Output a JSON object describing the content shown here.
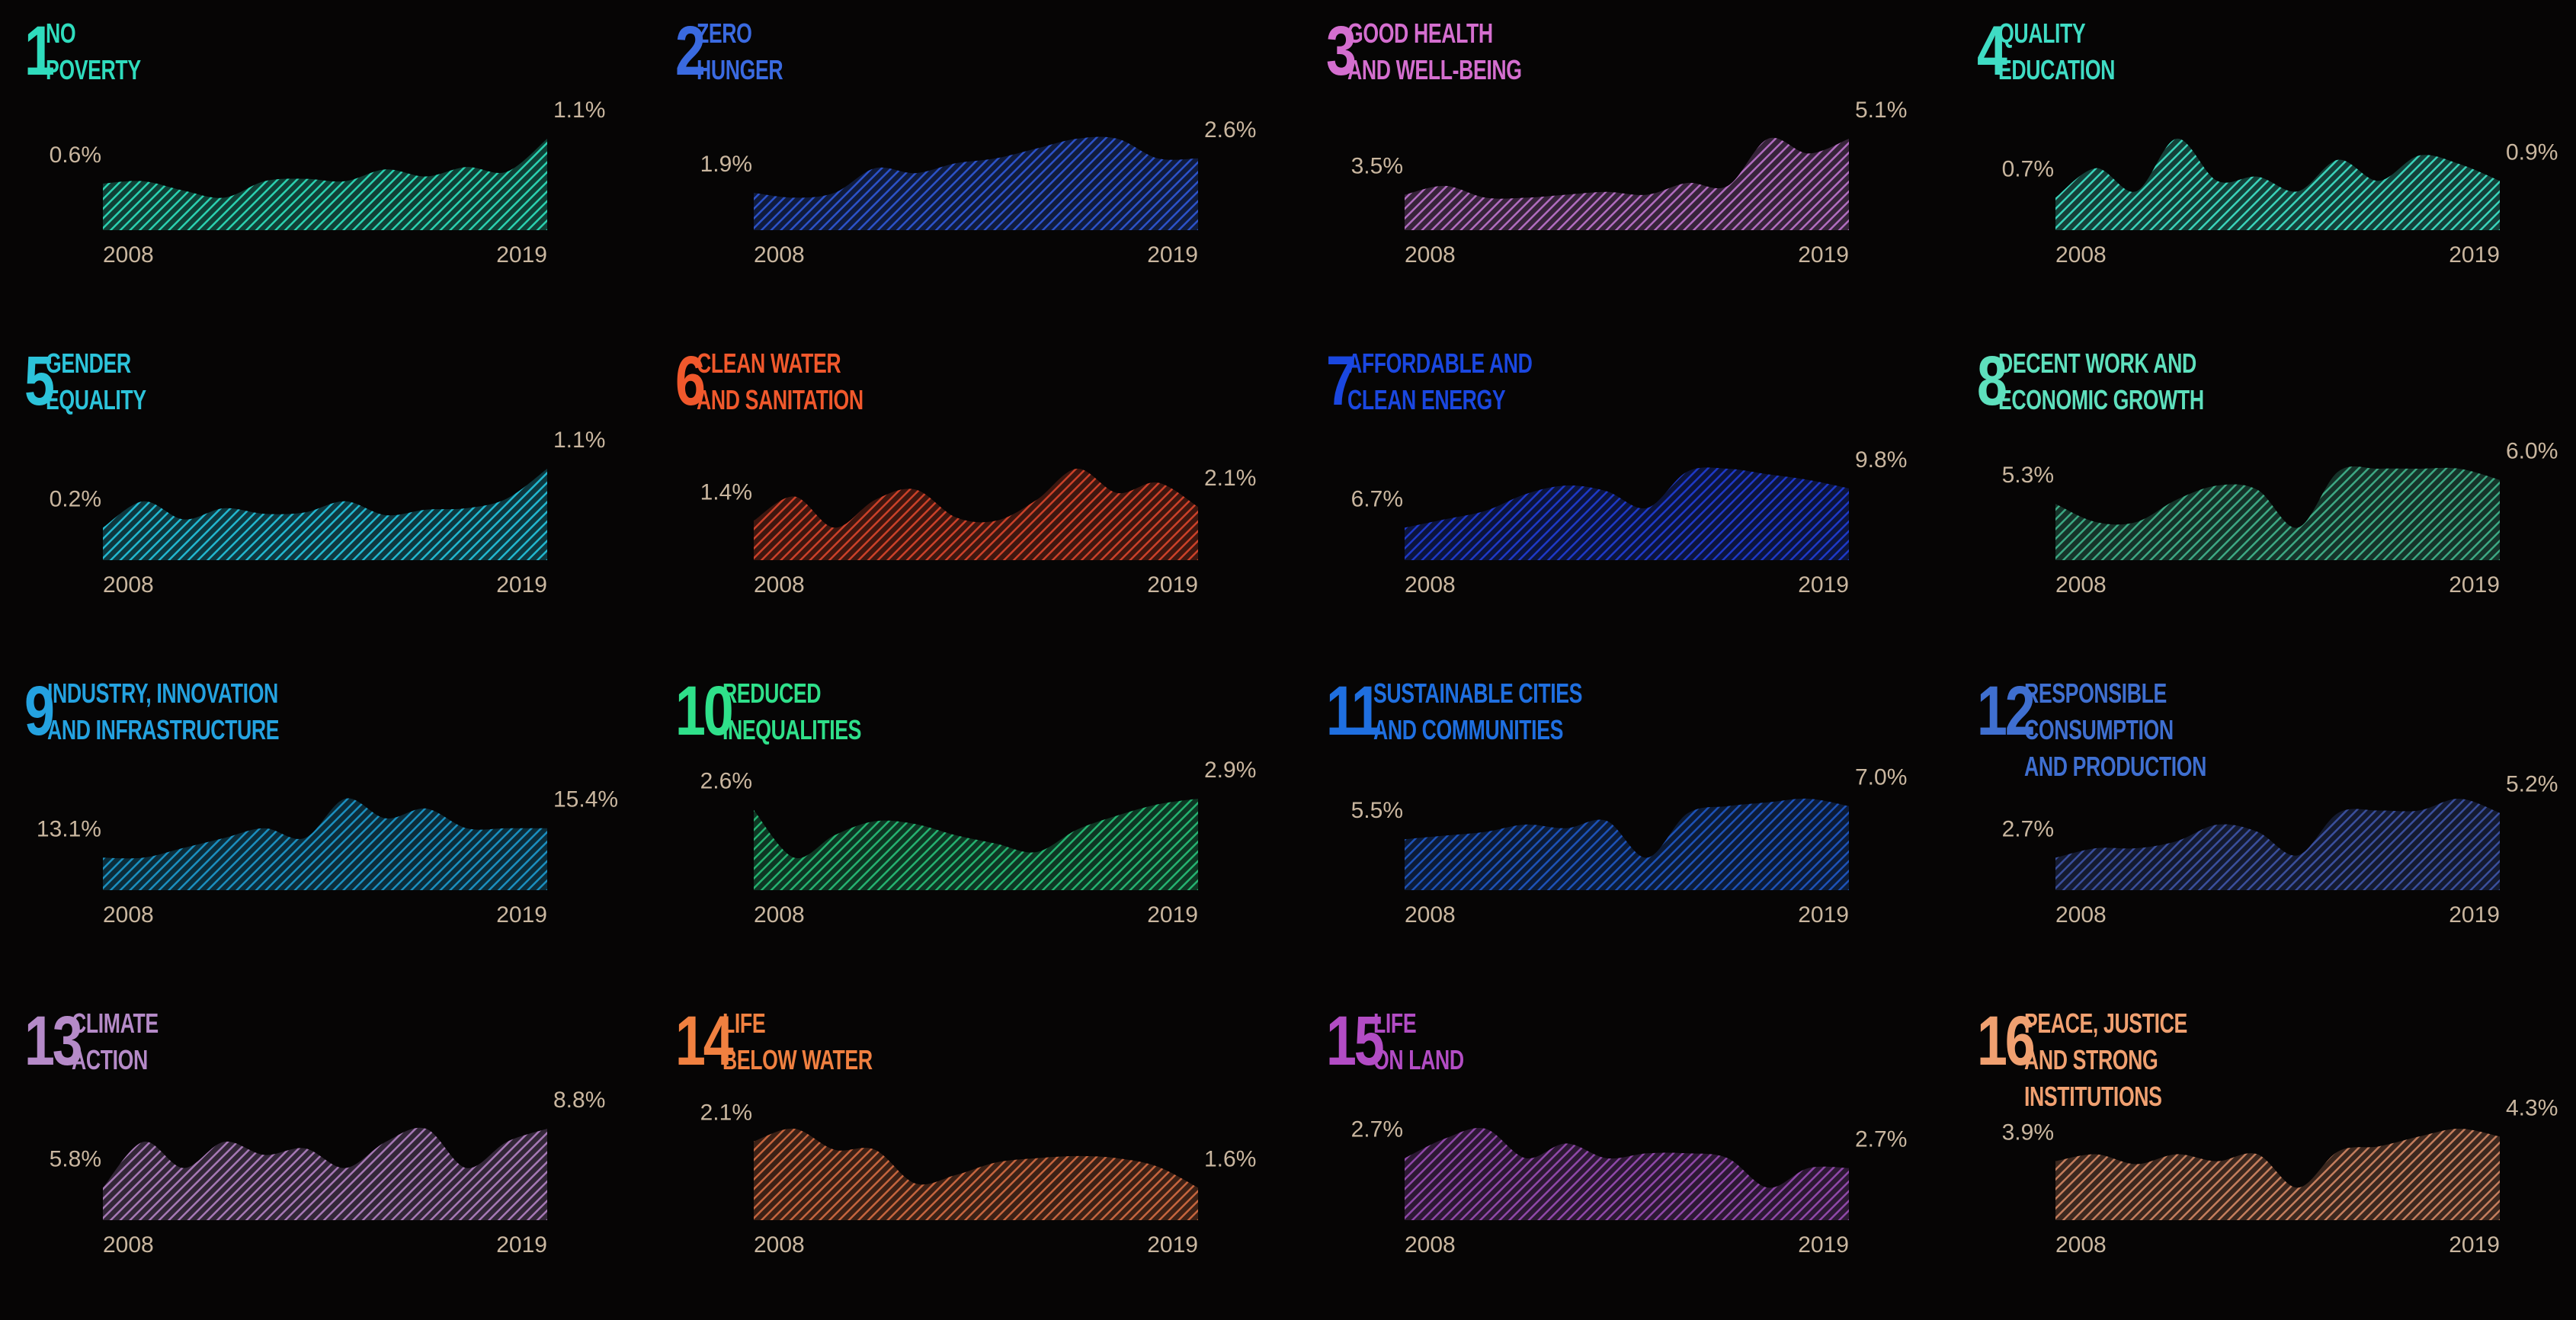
{
  "chart_data": [
    {
      "type": "area",
      "goal_number": "1",
      "name_lines": [
        "NO",
        "POVERTY"
      ],
      "color": "#2bd1b0",
      "x": [
        2008,
        2009,
        2010,
        2011,
        2012,
        2013,
        2014,
        2015,
        2016,
        2017,
        2018,
        2019
      ],
      "values": [
        0.72,
        0.74,
        0.66,
        0.6,
        0.74,
        0.76,
        0.74,
        0.84,
        0.78,
        0.86,
        0.82,
        1.1
      ],
      "start_label": "0.6%",
      "end_label": "1.1%",
      "x_start_label": "2008",
      "x_end_label": "2019"
    },
    {
      "type": "area",
      "goal_number": "2",
      "name_lines": [
        "ZERO",
        "HUNGER"
      ],
      "color": "#2c52c8",
      "x": [
        2008,
        2009,
        2010,
        2011,
        2012,
        2013,
        2014,
        2015,
        2016,
        2017,
        2018,
        2019
      ],
      "values": [
        1.95,
        1.9,
        1.95,
        2.2,
        2.15,
        2.25,
        2.3,
        2.4,
        2.5,
        2.5,
        2.3,
        2.3
      ],
      "start_label": "1.9%",
      "end_label": "2.6%",
      "x_start_label": "2008",
      "x_end_label": "2019"
    },
    {
      "type": "area",
      "goal_number": "3",
      "name_lines": [
        "GOOD HEALTH",
        "AND WELL-BEING"
      ],
      "color": "#b16dbf",
      "x": [
        2008,
        2009,
        2010,
        2011,
        2012,
        2013,
        2014,
        2015,
        2016,
        2017,
        2018,
        2019
      ],
      "values": [
        4.0,
        4.15,
        3.95,
        3.95,
        4.0,
        4.05,
        4.0,
        4.2,
        4.15,
        4.95,
        4.7,
        4.95
      ],
      "start_label": "3.5%",
      "end_label": "5.1%",
      "x_start_label": "2008",
      "x_end_label": "2019"
    },
    {
      "type": "area",
      "goal_number": "4",
      "name_lines": [
        "QUALITY",
        "EDUCATION"
      ],
      "color": "#3ad3ba",
      "x": [
        2008,
        2009,
        2010,
        2011,
        2012,
        2013,
        2014,
        2015,
        2016,
        2017,
        2018,
        2019
      ],
      "values": [
        0.62,
        0.76,
        0.65,
        0.9,
        0.7,
        0.72,
        0.65,
        0.8,
        0.7,
        0.82,
        0.78,
        0.7
      ],
      "start_label": "0.7%",
      "end_label": "0.9%",
      "x_start_label": "2008",
      "x_end_label": "2019"
    },
    {
      "type": "area",
      "goal_number": "5",
      "name_lines": [
        "GENDER",
        "EQUALITY"
      ],
      "color": "#22b7cf",
      "x": [
        2008,
        2009,
        2010,
        2011,
        2012,
        2013,
        2014,
        2015,
        2016,
        2017,
        2018,
        2019
      ],
      "values": [
        0.2,
        0.58,
        0.32,
        0.48,
        0.4,
        0.42,
        0.58,
        0.38,
        0.46,
        0.48,
        0.62,
        1.05
      ],
      "start_label": "0.2%",
      "end_label": "1.1%",
      "x_start_label": "2008",
      "x_end_label": "2019"
    },
    {
      "type": "area",
      "goal_number": "6",
      "name_lines": [
        "CLEAN WATER",
        "AND SANITATION"
      ],
      "color": "#cb4129",
      "x": [
        2008,
        2009,
        2010,
        2011,
        2012,
        2013,
        2014,
        2015,
        2016,
        2017,
        2018,
        2019
      ],
      "values": [
        1.42,
        1.56,
        1.38,
        1.54,
        1.6,
        1.44,
        1.42,
        1.54,
        1.72,
        1.58,
        1.64,
        1.5
      ],
      "start_label": "1.4%",
      "end_label": "2.1%",
      "x_start_label": "2008",
      "x_end_label": "2019"
    },
    {
      "type": "area",
      "goal_number": "7",
      "name_lines": [
        "AFFORDABLE AND",
        "CLEAN ENERGY"
      ],
      "color": "#1e39c7",
      "x": [
        2008,
        2009,
        2010,
        2011,
        2012,
        2013,
        2014,
        2015,
        2016,
        2017,
        2018,
        2019
      ],
      "values": [
        7.0,
        7.3,
        7.6,
        8.2,
        8.5,
        8.3,
        7.7,
        9.0,
        9.1,
        8.9,
        8.7,
        8.4
      ],
      "start_label": "6.7%",
      "end_label": "9.8%",
      "x_start_label": "2008",
      "x_end_label": "2019"
    },
    {
      "type": "area",
      "goal_number": "8",
      "name_lines": [
        "DECENT WORK AND",
        "ECONOMIC GROWTH"
      ],
      "color": "#3da883",
      "x": [
        2008,
        2009,
        2010,
        2011,
        2012,
        2013,
        2014,
        2015,
        2016,
        2017,
        2018,
        2019
      ],
      "values": [
        5.75,
        5.62,
        5.62,
        5.78,
        5.88,
        5.85,
        5.58,
        5.98,
        6.0,
        6.0,
        6.0,
        5.92
      ],
      "start_label": "5.3%",
      "end_label": "6.0%",
      "x_start_label": "2008",
      "x_end_label": "2019"
    },
    {
      "type": "area",
      "goal_number": "9",
      "name_lines": [
        "INDUSTRY, INNOVATION",
        "AND INFRASTRUCTURE"
      ],
      "color": "#1b8fbf",
      "x": [
        2008,
        2009,
        2010,
        2011,
        2012,
        2013,
        2014,
        2015,
        2016,
        2017,
        2018,
        2019
      ],
      "values": [
        14.1,
        14.1,
        14.2,
        14.3,
        14.4,
        14.3,
        14.7,
        14.5,
        14.6,
        14.4,
        14.4,
        14.4
      ],
      "start_label": "13.1%",
      "end_label": "15.4%",
      "x_start_label": "2008",
      "x_end_label": "2019"
    },
    {
      "type": "area",
      "goal_number": "10",
      "name_lines": [
        "REDUCED",
        "INEQUALITIES"
      ],
      "color": "#25b270",
      "x": [
        2008,
        2009,
        2010,
        2011,
        2012,
        2013,
        2014,
        2015,
        2016,
        2017,
        2018,
        2019
      ],
      "values": [
        2.83,
        2.66,
        2.74,
        2.79,
        2.78,
        2.74,
        2.71,
        2.68,
        2.76,
        2.81,
        2.85,
        2.87
      ],
      "start_label": "2.6%",
      "end_label": "2.9%",
      "x_start_label": "2008",
      "x_end_label": "2019"
    },
    {
      "type": "area",
      "goal_number": "11",
      "name_lines": [
        "SUSTAINABLE CITIES",
        "AND COMMUNITIES"
      ],
      "color": "#1d52b7",
      "x": [
        2008,
        2009,
        2010,
        2011,
        2012,
        2013,
        2014,
        2015,
        2016,
        2017,
        2018,
        2019
      ],
      "values": [
        6.05,
        6.1,
        6.15,
        6.25,
        6.2,
        6.3,
        5.8,
        6.4,
        6.5,
        6.55,
        6.6,
        6.5
      ],
      "start_label": "5.5%",
      "end_label": "7.0%",
      "x_start_label": "2008",
      "x_end_label": "2019"
    },
    {
      "type": "area",
      "goal_number": "12",
      "name_lines": [
        "RESPONSIBLE",
        "CONSUMPTION",
        "AND PRODUCTION"
      ],
      "color": "#3a4f9c",
      "x": [
        2008,
        2009,
        2010,
        2011,
        2012,
        2013,
        2014,
        2015,
        2016,
        2017,
        2018,
        2019
      ],
      "values": [
        3.2,
        3.4,
        3.4,
        3.55,
        3.9,
        3.75,
        3.25,
        4.15,
        4.2,
        4.2,
        4.45,
        4.15
      ],
      "start_label": "2.7%",
      "end_label": "5.2%",
      "x_start_label": "2008",
      "x_end_label": "2019"
    },
    {
      "type": "area",
      "goal_number": "13",
      "name_lines": [
        "CLIMATE",
        "ACTION"
      ],
      "color": "#a679b5",
      "x": [
        2008,
        2009,
        2010,
        2011,
        2012,
        2013,
        2014,
        2015,
        2016,
        2017,
        2018,
        2019
      ],
      "values": [
        6.6,
        7.3,
        6.9,
        7.3,
        7.1,
        7.2,
        6.9,
        7.3,
        7.5,
        6.9,
        7.3,
        7.5
      ],
      "start_label": "5.8%",
      "end_label": "8.8%",
      "x_start_label": "2008",
      "x_end_label": "2019"
    },
    {
      "type": "area",
      "goal_number": "14",
      "name_lines": [
        "LIFE",
        "BELOW WATER"
      ],
      "color": "#c5653e",
      "x": [
        2008,
        2009,
        2010,
        2011,
        2012,
        2013,
        2014,
        2015,
        2016,
        2017,
        2018,
        2019
      ],
      "values": [
        2.0,
        2.06,
        1.96,
        1.96,
        1.8,
        1.84,
        1.9,
        1.92,
        1.93,
        1.92,
        1.88,
        1.78
      ],
      "start_label": "2.1%",
      "end_label": "1.6%",
      "x_start_label": "2008",
      "x_end_label": "2019"
    },
    {
      "type": "area",
      "goal_number": "15",
      "name_lines": [
        "LIFE",
        "ON LAND"
      ],
      "color": "#8f48a8",
      "x": [
        2008,
        2009,
        2010,
        2011,
        2012,
        2013,
        2014,
        2015,
        2016,
        2017,
        2018,
        2019
      ],
      "values": [
        2.56,
        2.64,
        2.68,
        2.56,
        2.62,
        2.56,
        2.58,
        2.58,
        2.56,
        2.44,
        2.52,
        2.52
      ],
      "start_label": "2.7%",
      "end_label": "2.7%",
      "x_start_label": "2008",
      "x_end_label": "2019"
    },
    {
      "type": "area",
      "goal_number": "16",
      "name_lines": [
        "PEACE, JUSTICE",
        "AND STRONG",
        "INSTITUTIONS"
      ],
      "color": "#c47e5d",
      "x": [
        2008,
        2009,
        2010,
        2011,
        2012,
        2013,
        2014,
        2015,
        2016,
        2017,
        2018,
        2019
      ],
      "values": [
        4.05,
        4.12,
        4.02,
        4.12,
        4.05,
        4.12,
        3.78,
        4.15,
        4.2,
        4.3,
        4.38,
        4.3
      ],
      "start_label": "3.9%",
      "end_label": "4.3%",
      "x_start_label": "2008",
      "x_end_label": "2019"
    }
  ],
  "palette": {
    "label_color": "#c9b69f",
    "title_colors": [
      "#2fdcbd",
      "#3a6ae0",
      "#d46ecf",
      "#3fdcc4",
      "#2cc3da",
      "#f0582c",
      "#1a47e0",
      "#5ee0bd",
      "#24a2e0",
      "#2fe08a",
      "#1f6fe0",
      "#3f6fd0",
      "#b58ac8",
      "#f08040",
      "#b24cc4",
      "#f0a070"
    ]
  }
}
